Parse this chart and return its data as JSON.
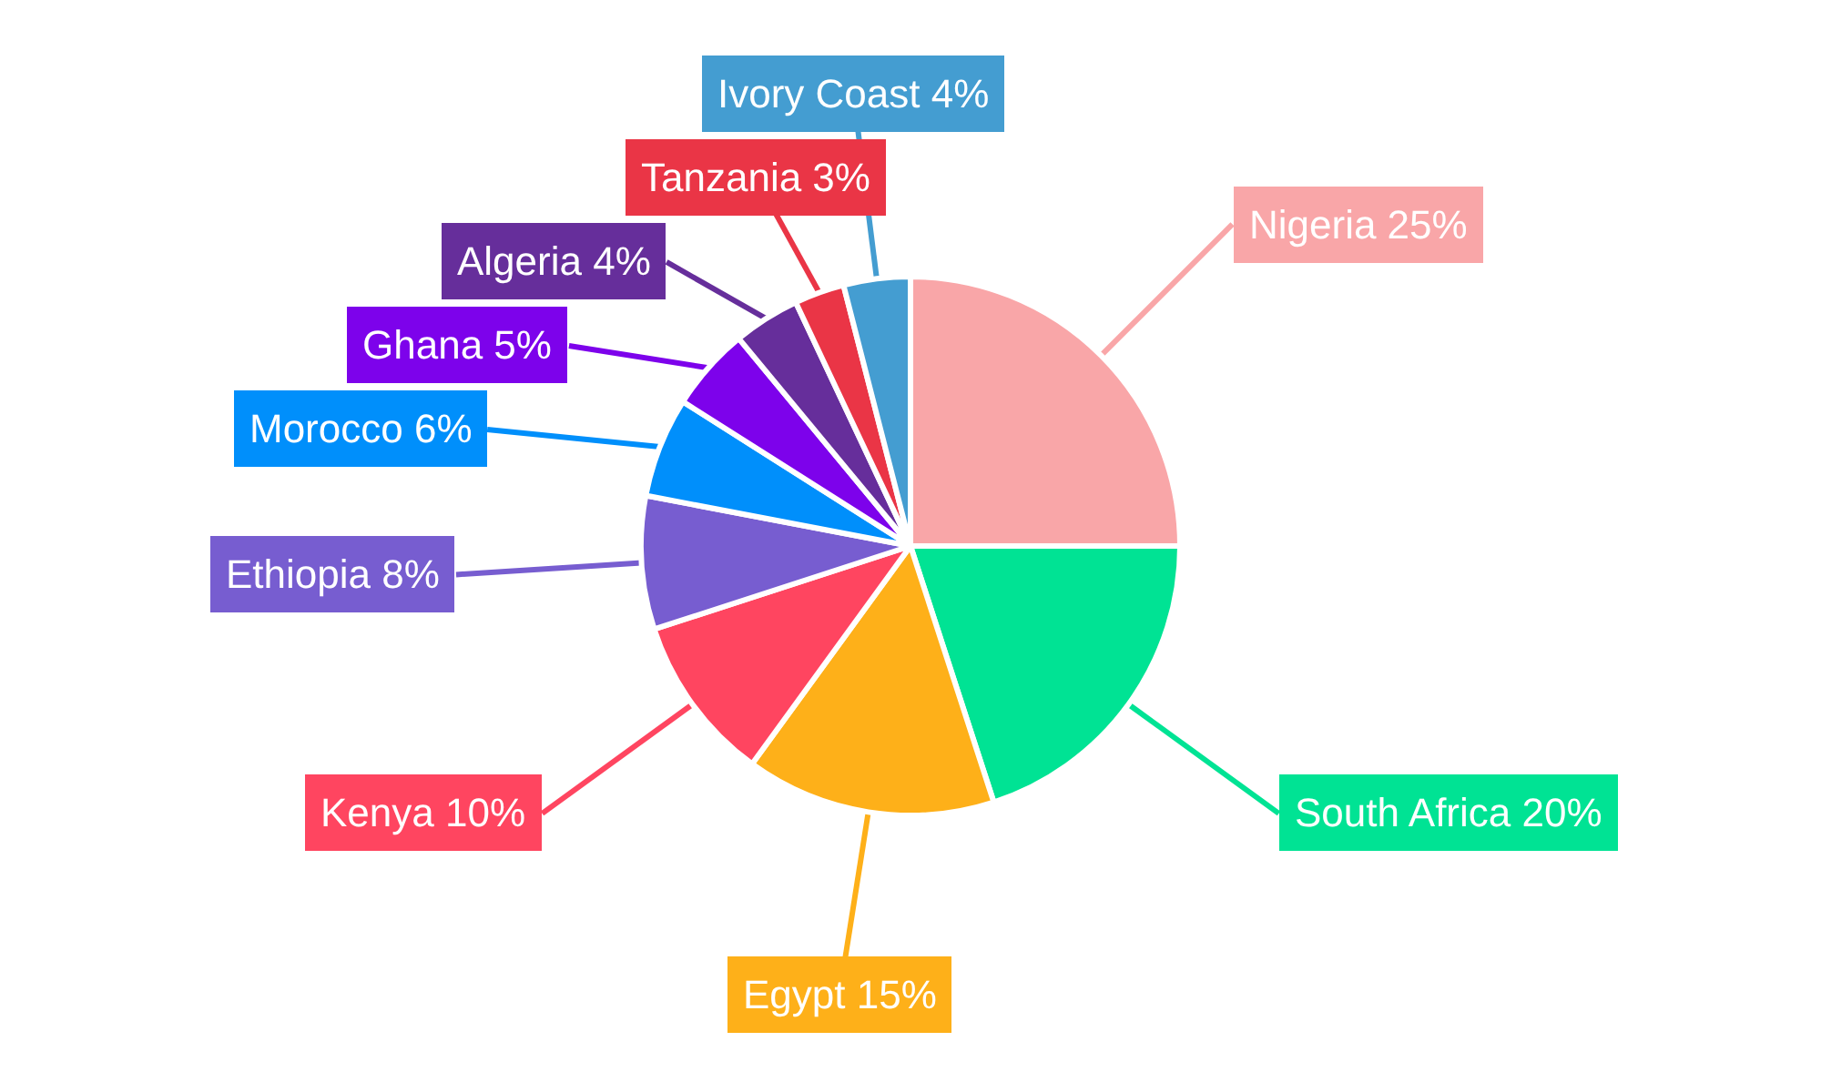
{
  "chart_data": {
    "type": "pie",
    "categories": [
      "Nigeria",
      "South Africa",
      "Egypt",
      "Kenya",
      "Ethiopia",
      "Morocco",
      "Ghana",
      "Algeria",
      "Tanzania",
      "Ivory Coast"
    ],
    "values": [
      25,
      20,
      15,
      10,
      8,
      6,
      5,
      4,
      3,
      4
    ],
    "value_labels": [
      "25%",
      "20%",
      "15%",
      "10%",
      "8%",
      "6%",
      "5%",
      "4%",
      "3%",
      "4%"
    ],
    "colors": [
      "#f9a6a8",
      "#00e394",
      "#feb019",
      "#ff4560",
      "#775dd0",
      "#008ffb",
      "#7d02eb",
      "#662e9b",
      "#ea3546",
      "#449dd1"
    ],
    "legend": false
  }
}
